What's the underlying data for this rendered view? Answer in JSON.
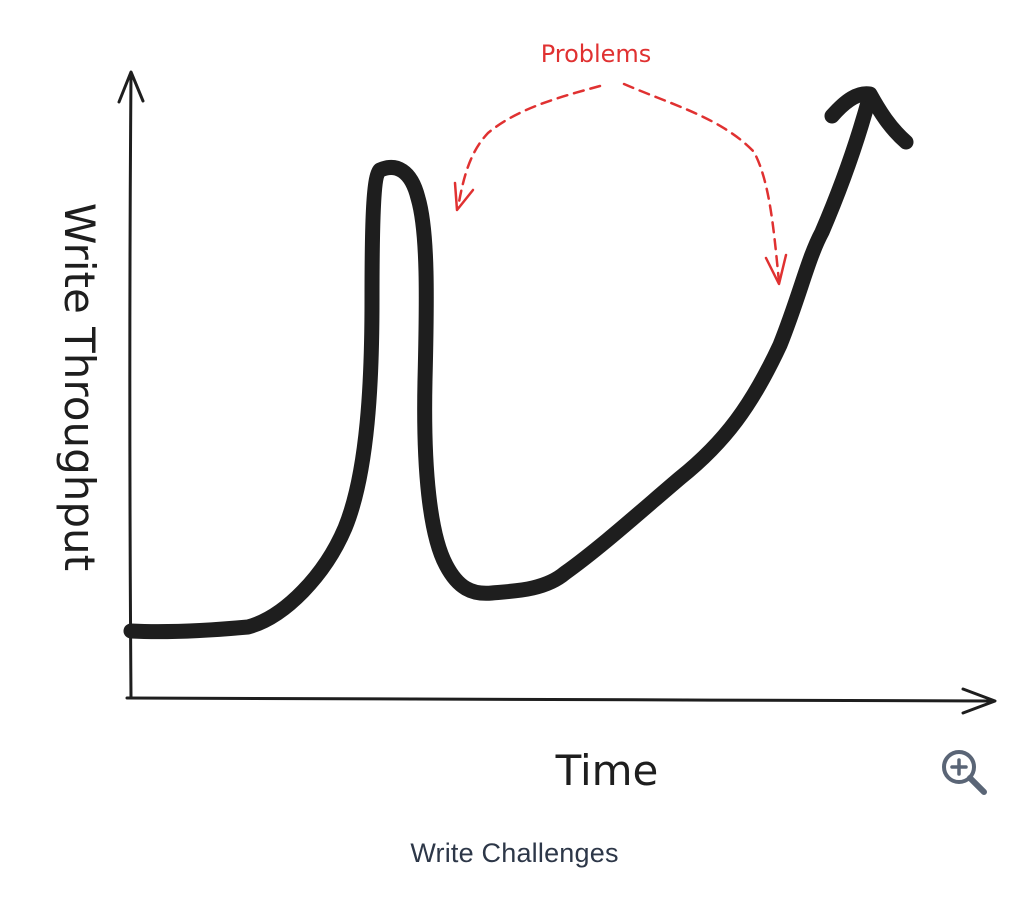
{
  "diagram": {
    "y_axis_label": "Write Throughput",
    "x_axis_label": "Time",
    "annotation": "Problems",
    "colors": {
      "ink": "#1e1e1e",
      "annotation": "#e03131"
    }
  },
  "caption": "Write Challenges",
  "zoom": {
    "icon": "zoom-in-icon",
    "color": "#5a6576"
  }
}
